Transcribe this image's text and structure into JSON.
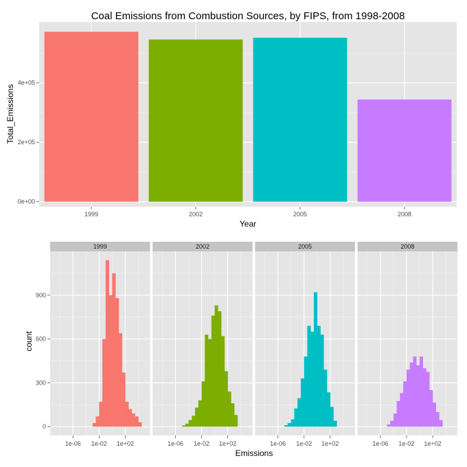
{
  "chart_data": [
    {
      "type": "bar",
      "title": "Coal Emissions from Combustion Sources, by FIPS, from 1998-2008",
      "xlabel": "Year",
      "ylabel": "Total_Emissions",
      "categories": [
        "1999",
        "2002",
        "2005",
        "2008"
      ],
      "values": [
        572000,
        546000,
        552000,
        344000
      ],
      "colors": [
        "#F8766D",
        "#7CAE00",
        "#00BFC4",
        "#C77CFF"
      ],
      "ylim": [
        -17000,
        605000
      ],
      "yticks": [
        0,
        200000,
        400000
      ],
      "ytick_labels": [
        "0e+00",
        "2e+05",
        "4e+05"
      ],
      "grid": true,
      "legend": "none"
    },
    {
      "type": "histogram",
      "xlabel": "Emissions",
      "ylabel": "count",
      "x_scale": "log10",
      "xlim_log10": [
        -9.5,
        5.8
      ],
      "xticks_log10": [
        -6,
        -2,
        2
      ],
      "xtick_labels": [
        "1e-06",
        "1e-02",
        "1e+02"
      ],
      "ylim": [
        -60,
        1200
      ],
      "yticks": [
        0,
        300,
        600,
        900
      ],
      "ytick_labels": [
        "0",
        "300",
        "600",
        "900"
      ],
      "bin_width_log10": 0.5,
      "grid": true,
      "legend": "none",
      "facets": [
        {
          "label": "1999",
          "color": "#F8766D",
          "bin_start_log10": -3.0,
          "counts": [
            25,
            70,
            170,
            600,
            1140,
            900,
            1050,
            880,
            640,
            370,
            170,
            120,
            90,
            70,
            30
          ]
        },
        {
          "label": "2002",
          "color": "#7CAE00",
          "bin_start_log10": -5.0,
          "counts": [
            8,
            20,
            45,
            75,
            130,
            180,
            310,
            630,
            600,
            760,
            830,
            790,
            620,
            380,
            240,
            160,
            80
          ]
        },
        {
          "label": "2005",
          "color": "#00BFC4",
          "bin_start_log10": -5.0,
          "counts": [
            10,
            25,
            50,
            125,
            195,
            330,
            480,
            690,
            650,
            920,
            690,
            630,
            390,
            235,
            135,
            40
          ]
        },
        {
          "label": "2008",
          "color": "#C77CFF",
          "bin_start_log10": -5.0,
          "counts": [
            15,
            40,
            90,
            175,
            230,
            310,
            390,
            440,
            480,
            420,
            480,
            400,
            375,
            250,
            165,
            100,
            45
          ]
        }
      ]
    }
  ]
}
